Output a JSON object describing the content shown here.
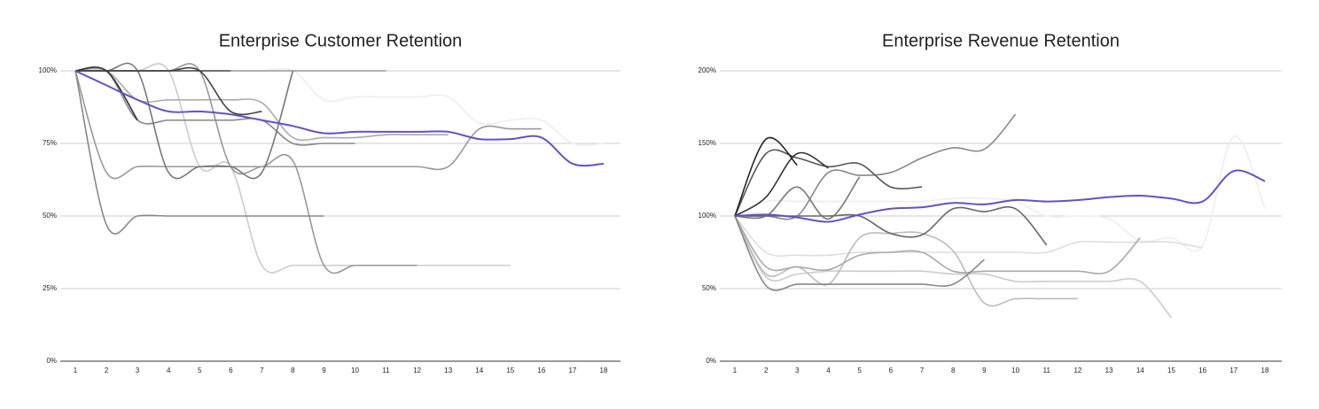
{
  "chart_data": [
    {
      "type": "line",
      "title": "Enterprise Customer Retention",
      "categories": [
        "1",
        "2",
        "3",
        "4",
        "5",
        "6",
        "7",
        "8",
        "9",
        "10",
        "11",
        "12",
        "13",
        "14",
        "15",
        "16",
        "17",
        "18"
      ],
      "ylim": [
        0,
        100
      ],
      "yticks": [
        {
          "value": 0,
          "label": "0%"
        },
        {
          "value": 25,
          "label": "25%"
        },
        {
          "value": 50,
          "label": "50%"
        },
        {
          "value": 75,
          "label": "75%"
        },
        {
          "value": 100,
          "label": "100%"
        }
      ],
      "grid": true,
      "series": [
        {
          "color": "#eeeeee",
          "values": [
            100,
            100,
            100,
            100,
            100,
            100,
            100,
            100,
            90,
            91,
            91,
            91,
            91,
            82,
            83,
            83,
            75,
            75
          ]
        },
        {
          "color": "#cccccc",
          "values": [
            100,
            100,
            100,
            100,
            67,
            67,
            33,
            33,
            33,
            33,
            33,
            33,
            33,
            33,
            33,
            null,
            null,
            null
          ]
        },
        {
          "color": "#aaaaaa",
          "values": [
            100,
            100,
            90,
            90,
            90,
            90,
            89,
            77,
            77,
            77,
            78,
            78,
            78,
            null,
            null,
            null,
            null,
            null
          ]
        },
        {
          "color": "#999999",
          "values": [
            100,
            65,
            67,
            67,
            67,
            67,
            67,
            67,
            67,
            67,
            67,
            67,
            67,
            80,
            80,
            80,
            null,
            null
          ]
        },
        {
          "color": "#999999",
          "values": [
            100,
            100,
            100,
            100,
            100,
            100,
            100,
            100,
            100,
            100,
            100,
            null,
            null,
            null,
            null,
            null,
            null,
            null
          ]
        },
        {
          "color": "#999999",
          "values": [
            100,
            100,
            100,
            100,
            100,
            67,
            67,
            69,
            33,
            33,
            33,
            33,
            null,
            null,
            null,
            null,
            null,
            null
          ]
        },
        {
          "color": "#888888",
          "values": [
            100,
            100,
            83,
            83,
            83,
            83,
            83,
            75,
            75,
            75,
            null,
            null,
            null,
            null,
            null,
            null,
            null,
            null
          ]
        },
        {
          "color": "#888888",
          "values": [
            100,
            47,
            50,
            50,
            50,
            50,
            50,
            50,
            50,
            null,
            null,
            null,
            null,
            null,
            null,
            null,
            null,
            null
          ]
        },
        {
          "color": "#777777",
          "values": [
            100,
            100,
            100,
            65,
            67,
            67,
            65,
            100,
            null,
            null,
            null,
            null,
            null,
            null,
            null,
            null,
            null,
            null
          ]
        },
        {
          "color": "#555555",
          "values": [
            100,
            100,
            100,
            100,
            100,
            100,
            null,
            null,
            null,
            null,
            null,
            null,
            null,
            null,
            null,
            null,
            null,
            null
          ]
        },
        {
          "color": "#444444",
          "values": [
            100,
            100,
            100,
            100,
            100,
            86,
            86,
            null,
            null,
            null,
            null,
            null,
            null,
            null,
            null,
            null,
            null,
            null
          ]
        },
        {
          "color": "#333333",
          "values": [
            100,
            100,
            83,
            null,
            null,
            null,
            null,
            null,
            null,
            null,
            null,
            null,
            null,
            null,
            null,
            null,
            null,
            null
          ]
        },
        {
          "color": "#6a4fc4",
          "values": [
            100,
            95,
            90,
            86,
            86,
            85,
            83,
            81,
            78.5,
            79,
            79,
            79,
            79,
            76.5,
            76.5,
            77,
            68,
            68
          ]
        }
      ]
    },
    {
      "type": "line",
      "title": "Enterprise Revenue Retention",
      "categories": [
        "1",
        "2",
        "3",
        "4",
        "5",
        "6",
        "7",
        "8",
        "9",
        "10",
        "11",
        "12",
        "13",
        "14",
        "15",
        "16",
        "17",
        "18"
      ],
      "ylim": [
        0,
        200
      ],
      "yticks": [
        {
          "value": 0,
          "label": "0%"
        },
        {
          "value": 50,
          "label": "50%"
        },
        {
          "value": 100,
          "label": "100%"
        },
        {
          "value": 150,
          "label": "150%"
        },
        {
          "value": 200,
          "label": "200%"
        }
      ],
      "grid": true,
      "series": [
        {
          "color": "#eeeeee",
          "values": [
            100,
            110,
            110,
            110,
            110,
            110,
            110,
            112,
            112,
            110,
            100,
            100,
            98,
            83,
            85,
            80,
            155,
            105
          ]
        },
        {
          "color": "#dddddd",
          "values": [
            100,
            75,
            73,
            73,
            75,
            75,
            75,
            75,
            75,
            75,
            75,
            82,
            82,
            82,
            82,
            78,
            null,
            null
          ]
        },
        {
          "color": "#cccccc",
          "values": [
            100,
            58,
            60,
            62,
            62,
            62,
            62,
            60,
            60,
            55,
            55,
            55,
            55,
            55,
            30,
            null,
            null,
            null
          ]
        },
        {
          "color": "#bbbbbb",
          "values": [
            100,
            60,
            65,
            53,
            85,
            88,
            88,
            76,
            40,
            43,
            43,
            43,
            null,
            null,
            null,
            null,
            null,
            null
          ]
        },
        {
          "color": "#aaaaaa",
          "values": [
            100,
            65,
            65,
            63,
            73,
            75,
            75,
            62,
            62,
            62,
            62,
            62,
            62,
            85,
            null,
            null,
            null,
            null
          ]
        },
        {
          "color": "#888888",
          "values": [
            100,
            52,
            53,
            53,
            53,
            53,
            53,
            53,
            70,
            null,
            null,
            null,
            null,
            null,
            null,
            null,
            null,
            null
          ]
        },
        {
          "color": "#888888",
          "values": [
            100,
            100,
            100,
            130,
            128,
            130,
            140,
            147,
            146,
            170,
            null,
            null,
            null,
            null,
            null,
            null,
            null,
            null
          ]
        },
        {
          "color": "#666666",
          "values": [
            100,
            100,
            100,
            100,
            100,
            88,
            87,
            105,
            103,
            105,
            80,
            null,
            null,
            null,
            null,
            null,
            null,
            null
          ]
        },
        {
          "color": "#777777",
          "values": [
            100,
            100,
            120,
            98,
            127,
            null,
            null,
            null,
            null,
            null,
            null,
            null,
            null,
            null,
            null,
            null,
            null,
            null
          ]
        },
        {
          "color": "#555555",
          "values": [
            100,
            143,
            140,
            134,
            136,
            120,
            120,
            null,
            null,
            null,
            null,
            null,
            null,
            null,
            null,
            null,
            null,
            null
          ]
        },
        {
          "color": "#333333",
          "values": [
            100,
            113,
            143,
            133,
            null,
            null,
            null,
            null,
            null,
            null,
            null,
            null,
            null,
            null,
            null,
            null,
            null,
            null
          ]
        },
        {
          "color": "#222222",
          "values": [
            100,
            153,
            135,
            null,
            null,
            null,
            null,
            null,
            null,
            null,
            null,
            null,
            null,
            null,
            null,
            null,
            null,
            null
          ]
        },
        {
          "color": "#6a4fc4",
          "values": [
            100,
            101,
            99,
            96,
            101,
            105,
            106,
            109,
            108,
            111,
            110,
            111,
            113,
            114,
            112,
            110,
            131,
            124
          ]
        }
      ]
    }
  ]
}
